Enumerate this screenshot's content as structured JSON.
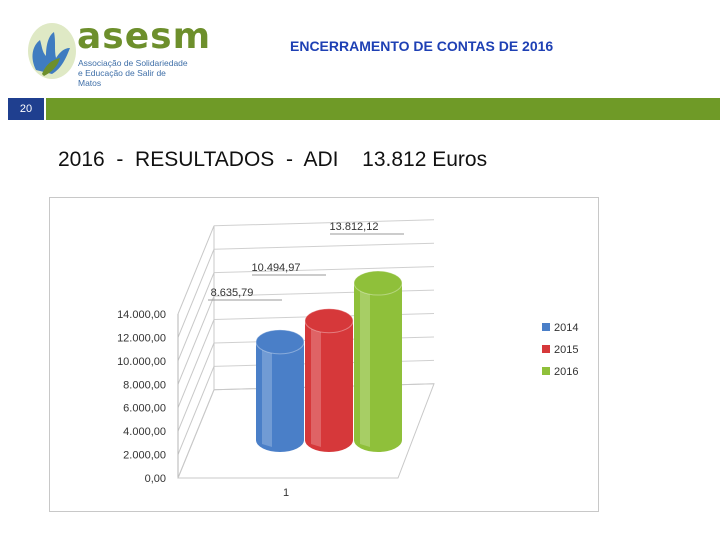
{
  "header": {
    "title": "ENCERRAMENTO DE CONTAS DE 2016",
    "logo_text": "asesm",
    "logo_subtitle_line1": "Associação de Solidariedade",
    "logo_subtitle_line2": "e Educação de Salir de Matos",
    "slide_number": "20",
    "colors": {
      "bar": "#6f9a27",
      "number_box": "#1f3f8f",
      "title": "#1e40b4"
    }
  },
  "headline": {
    "left": "2016  -  RESULTADOS  -  ADI",
    "right": "13.812 Euros"
  },
  "chart_data": {
    "type": "bar",
    "style": "3d-cylinder",
    "categories": [
      "1"
    ],
    "series": [
      {
        "name": "2014",
        "values": [
          8635.79
        ],
        "label": "8.635,79",
        "color": "#4a7fc8"
      },
      {
        "name": "2015",
        "values": [
          10494.97
        ],
        "label": "10.494,97",
        "color": "#d6383a"
      },
      {
        "name": "2016",
        "values": [
          13812.12
        ],
        "label": "13.812,12",
        "color": "#8fc03a"
      }
    ],
    "ylim": [
      0,
      14000
    ],
    "yticks": [
      "0,00",
      "2.000,00",
      "4.000,00",
      "6.000,00",
      "8.000,00",
      "10.000,00",
      "12.000,00",
      "14.000,00"
    ],
    "grid": true,
    "legend": "right"
  }
}
